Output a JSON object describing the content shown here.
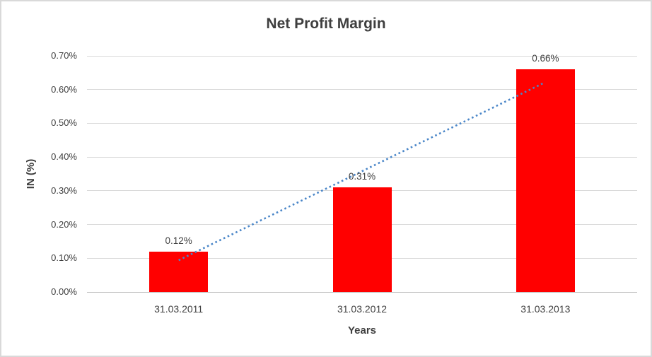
{
  "figure": {
    "background": "#FFFFFF",
    "border_color": "#D9D9D9"
  },
  "chart_data": {
    "type": "bar",
    "title": "Net Profit Margin",
    "xlabel": "Years",
    "ylabel": "IN (%)",
    "categories": [
      "31.03.2011",
      "31.03.2012",
      "31.03.2013"
    ],
    "values": [
      0.12,
      0.31,
      0.66
    ],
    "data_labels": [
      "0.12%",
      "0.31%",
      "0.66%"
    ],
    "ylim": [
      0,
      0.7
    ],
    "y_tick_step": 0.1,
    "y_ticks": [
      "0.00%",
      "0.10%",
      "0.20%",
      "0.30%",
      "0.40%",
      "0.50%",
      "0.60%",
      "0.70%"
    ],
    "grid": true,
    "legend": "none",
    "bar_color": "#FF0000",
    "gridline_color": "#D9D9D9",
    "axis_line_color": "#BFBFBF",
    "text_color": "#404040",
    "trendline": {
      "type": "linear",
      "style": "dotted",
      "color": "#4A86C8",
      "start": {
        "category_index": 0,
        "value": 0.094
      },
      "end": {
        "category_index": 2,
        "value": 0.618
      }
    }
  }
}
